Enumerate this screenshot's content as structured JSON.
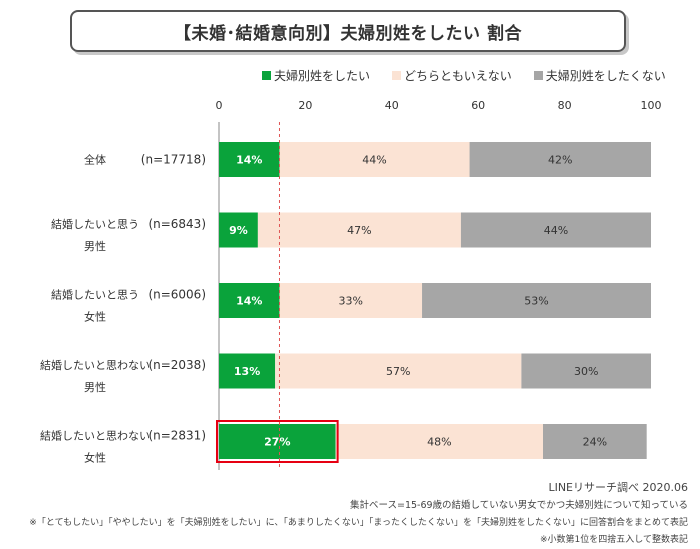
{
  "chart_data": {
    "type": "bar",
    "stacked": true,
    "orientation": "horizontal",
    "title": "【未婚･結婚意向別】夫婦別姓をしたい 割合",
    "xlim": [
      0,
      100
    ],
    "xticks": [
      0,
      20,
      40,
      60,
      80,
      100
    ],
    "categories": [
      {
        "label1": "全体",
        "label2": "",
        "n": "(n=17718)"
      },
      {
        "label1": "結婚したいと思う",
        "label2": "男性",
        "n": "(n=6843)"
      },
      {
        "label1": "結婚したいと思う",
        "label2": "女性",
        "n": "(n=6006)"
      },
      {
        "label1": "結婚したいと思わない",
        "label2": "男性",
        "n": "(n=2038)"
      },
      {
        "label1": "結婚したいと思わない",
        "label2": "女性",
        "n": "(n=2831)"
      }
    ],
    "series": [
      {
        "name": "夫婦別姓をしたい",
        "color": "#0aa33b",
        "values": [
          14,
          9,
          14,
          13,
          27
        ],
        "labels": [
          "14%",
          "9%",
          "14%",
          "13%",
          "27%"
        ]
      },
      {
        "name": "どちらともいえない",
        "color": "#fbe3d4",
        "values": [
          44,
          47,
          33,
          57,
          48
        ],
        "labels": [
          "44%",
          "47%",
          "33%",
          "57%",
          "48%"
        ]
      },
      {
        "name": "夫婦別姓をしたくない",
        "color": "#a6a6a6",
        "values": [
          42,
          44,
          53,
          30,
          24
        ],
        "labels": [
          "42%",
          "44%",
          "53%",
          "30%",
          "24%"
        ]
      }
    ],
    "reference_line": 14,
    "highlight": {
      "category_index": 4,
      "series_index": 0,
      "color": "#e60012"
    },
    "grid": false,
    "legend_position": "top"
  },
  "footer": {
    "source": "LINEリサーチ調べ 2020.06",
    "base": "集計ベース=15-69歳の結婚していない男女でかつ夫婦別姓について知っている",
    "note1": "※「とてもしたい」「ややしたい」を「夫婦別姓をしたい」に、「あまりしたくない」「まったくしたくない」を「夫婦別姓をしたくない」に回答割合をまとめて表記",
    "note2": "※小数第1位を四捨五入して整数表記"
  }
}
